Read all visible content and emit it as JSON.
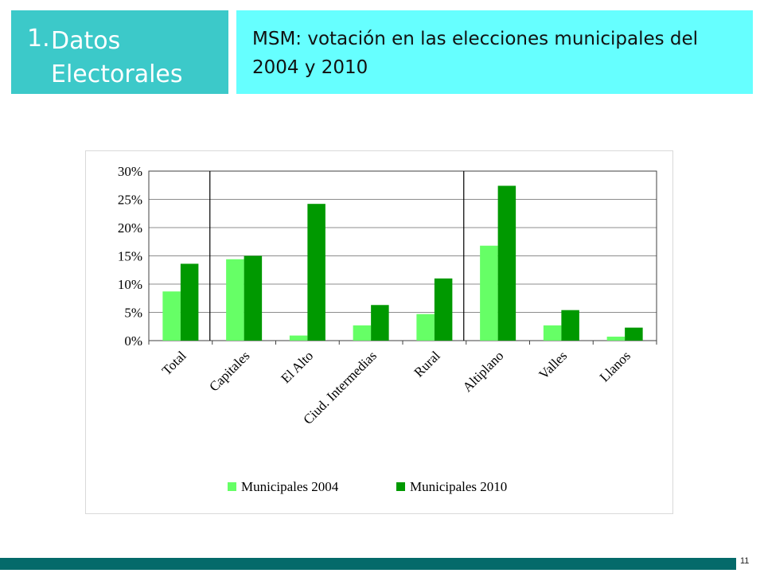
{
  "header": {
    "section_number": "1.",
    "section_title": "Datos Electorales",
    "slide_title": "MSM: votación en las elecciones municipales del 2004 y 2010"
  },
  "footer": {
    "page_number": "11"
  },
  "colors": {
    "section_box": "#3cc9c9",
    "title_box": "#66ffff",
    "footer_bar": "#046a6a",
    "series_2004": "#66ff66",
    "series_2010": "#009900"
  },
  "chart_data": {
    "type": "bar",
    "categories": [
      "Total",
      "Capitales",
      "El Alto",
      "Ciud. Intermedias",
      "Rural",
      "Altiplano",
      "Valles",
      "Llanos"
    ],
    "series": [
      {
        "name": "Municipales 2004",
        "values": [
          8.7,
          14.4,
          0.9,
          2.7,
          4.7,
          16.8,
          2.7,
          0.7
        ],
        "color": "#66ff66"
      },
      {
        "name": "Municipales 2010",
        "values": [
          13.6,
          15.0,
          24.2,
          6.3,
          11.0,
          27.4,
          5.4,
          2.3
        ],
        "color": "#009900"
      }
    ],
    "ylim": [
      0,
      30
    ],
    "yticks": [
      "0%",
      "5%",
      "10%",
      "15%",
      "20%",
      "25%",
      "30%"
    ],
    "grid": true,
    "legend_position": "bottom",
    "group_separators_after": [
      "Total",
      "Rural"
    ]
  }
}
